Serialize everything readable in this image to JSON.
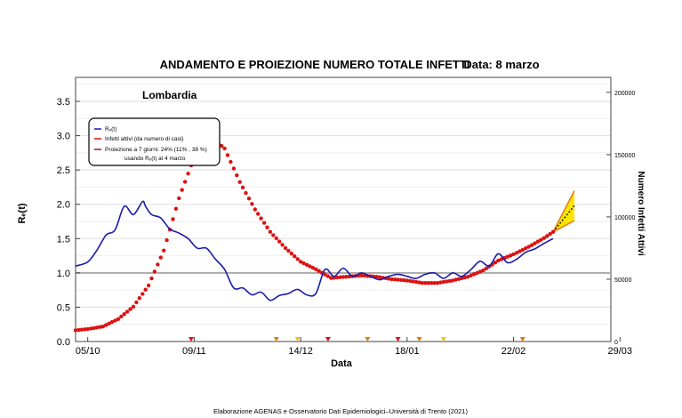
{
  "chart_data": {
    "type": "line",
    "title": "ANDAMENTO E PROIEZIONE NUMERO TOTALE INFETTI",
    "date_label": "Data: 8 marzo",
    "region_label": "Lombardia",
    "xlabel": "Data",
    "ylabel_left": "Rₑ(t)",
    "ylabel_right": "Numero Infetti Attivi",
    "credit": "Elaborazione AGENAS e Osservatorio Dati Epidemiologici–Università di Trento (2021)",
    "x_ticks": [
      "05/10",
      "09/11",
      "14/12",
      "18/01",
      "22/02",
      "29/03"
    ],
    "y_left_ticks": [
      "0.0",
      "0.5",
      "1.0",
      "1.5",
      "2.0",
      "2.5",
      "3.0",
      "3.5"
    ],
    "y_right_ticks": [
      "50000",
      "100000",
      "150000",
      "200000"
    ],
    "ylim_left": [
      0,
      3.85
    ],
    "ylim_right": [
      0,
      212000
    ],
    "xlim_days": [
      -4,
      172
    ],
    "x_start_date": "2020-10-05",
    "reference_line_y": 1.0,
    "legend": {
      "placement": "top-left",
      "entries": [
        {
          "label": "Rₑ(t)",
          "color": "#1a1aaa"
        },
        {
          "label": "Infetti attivi (da numero di casi)",
          "color": "#dd1111"
        },
        {
          "label": "Proiezione a 7 giorni: 24% (11% , 38 %)",
          "label2": "usando Rₑ(t) al 4 marzo",
          "color": "#9a1a1a"
        }
      ]
    },
    "series": [
      {
        "name": "Rₑ(t)",
        "axis": "left",
        "color": "#1a1aaa",
        "x": [
          -4,
          0,
          3,
          6,
          9,
          12,
          15,
          18,
          19,
          21,
          24,
          27,
          30,
          33,
          36,
          39,
          42,
          45,
          48,
          51,
          54,
          57,
          60,
          63,
          66,
          69,
          72,
          75,
          78,
          81,
          84,
          87,
          90,
          93,
          96,
          99,
          102,
          105,
          108,
          111,
          114,
          117,
          120,
          123,
          126,
          129,
          132,
          135,
          138,
          141,
          144,
          147,
          150,
          153
        ],
        "values": [
          1.1,
          1.16,
          1.33,
          1.55,
          1.63,
          1.97,
          1.85,
          2.04,
          1.97,
          1.85,
          1.8,
          1.64,
          1.58,
          1.5,
          1.36,
          1.36,
          1.2,
          1.05,
          0.78,
          0.78,
          0.68,
          0.72,
          0.6,
          0.67,
          0.7,
          0.76,
          0.68,
          0.7,
          1.05,
          0.95,
          1.07,
          0.95,
          1.0,
          0.95,
          0.9,
          0.95,
          0.98,
          0.95,
          0.92,
          0.98,
          1.0,
          0.92,
          1.0,
          0.95,
          1.05,
          1.17,
          1.1,
          1.28,
          1.15,
          1.2,
          1.3,
          1.35,
          1.43,
          1.5
        ]
      },
      {
        "name": "Infetti attivi (da numero di casi)",
        "axis": "right",
        "color": "#dd1111",
        "x": [
          -4,
          0,
          5,
          10,
          15,
          20,
          25,
          30,
          35,
          40,
          45,
          50,
          55,
          60,
          65,
          70,
          75,
          80,
          85,
          90,
          95,
          100,
          105,
          110,
          115,
          120,
          125,
          130,
          135,
          140,
          145,
          150,
          153
        ],
        "values": [
          9000,
          10000,
          12000,
          18000,
          28000,
          45000,
          73000,
          115000,
          148000,
          165000,
          155000,
          128000,
          106000,
          88000,
          75000,
          64000,
          58000,
          51000,
          52000,
          53000,
          52000,
          50000,
          49000,
          47000,
          47000,
          49000,
          52000,
          57000,
          65000,
          70000,
          76000,
          83000,
          88000
        ]
      },
      {
        "name": "Proiezione a 7 giorni",
        "axis": "right",
        "color": "#9a1a1a",
        "x": [
          153,
          160
        ],
        "values": [
          88000,
          109000
        ],
        "upper": [
          88000,
          121000
        ],
        "lower": [
          88000,
          97000
        ]
      }
    ],
    "markers": [
      {
        "x": 34,
        "color": "#dd1111"
      },
      {
        "x": 62,
        "color": "#e07a10"
      },
      {
        "x": 69,
        "color": "#f0c020"
      },
      {
        "x": 79,
        "color": "#dd1111"
      },
      {
        "x": 92,
        "color": "#e07a10"
      },
      {
        "x": 102,
        "color": "#dd1111"
      },
      {
        "x": 109,
        "color": "#e07a10"
      },
      {
        "x": 117,
        "color": "#f0c020"
      },
      {
        "x": 143,
        "color": "#e07a10"
      }
    ],
    "grid": true
  }
}
